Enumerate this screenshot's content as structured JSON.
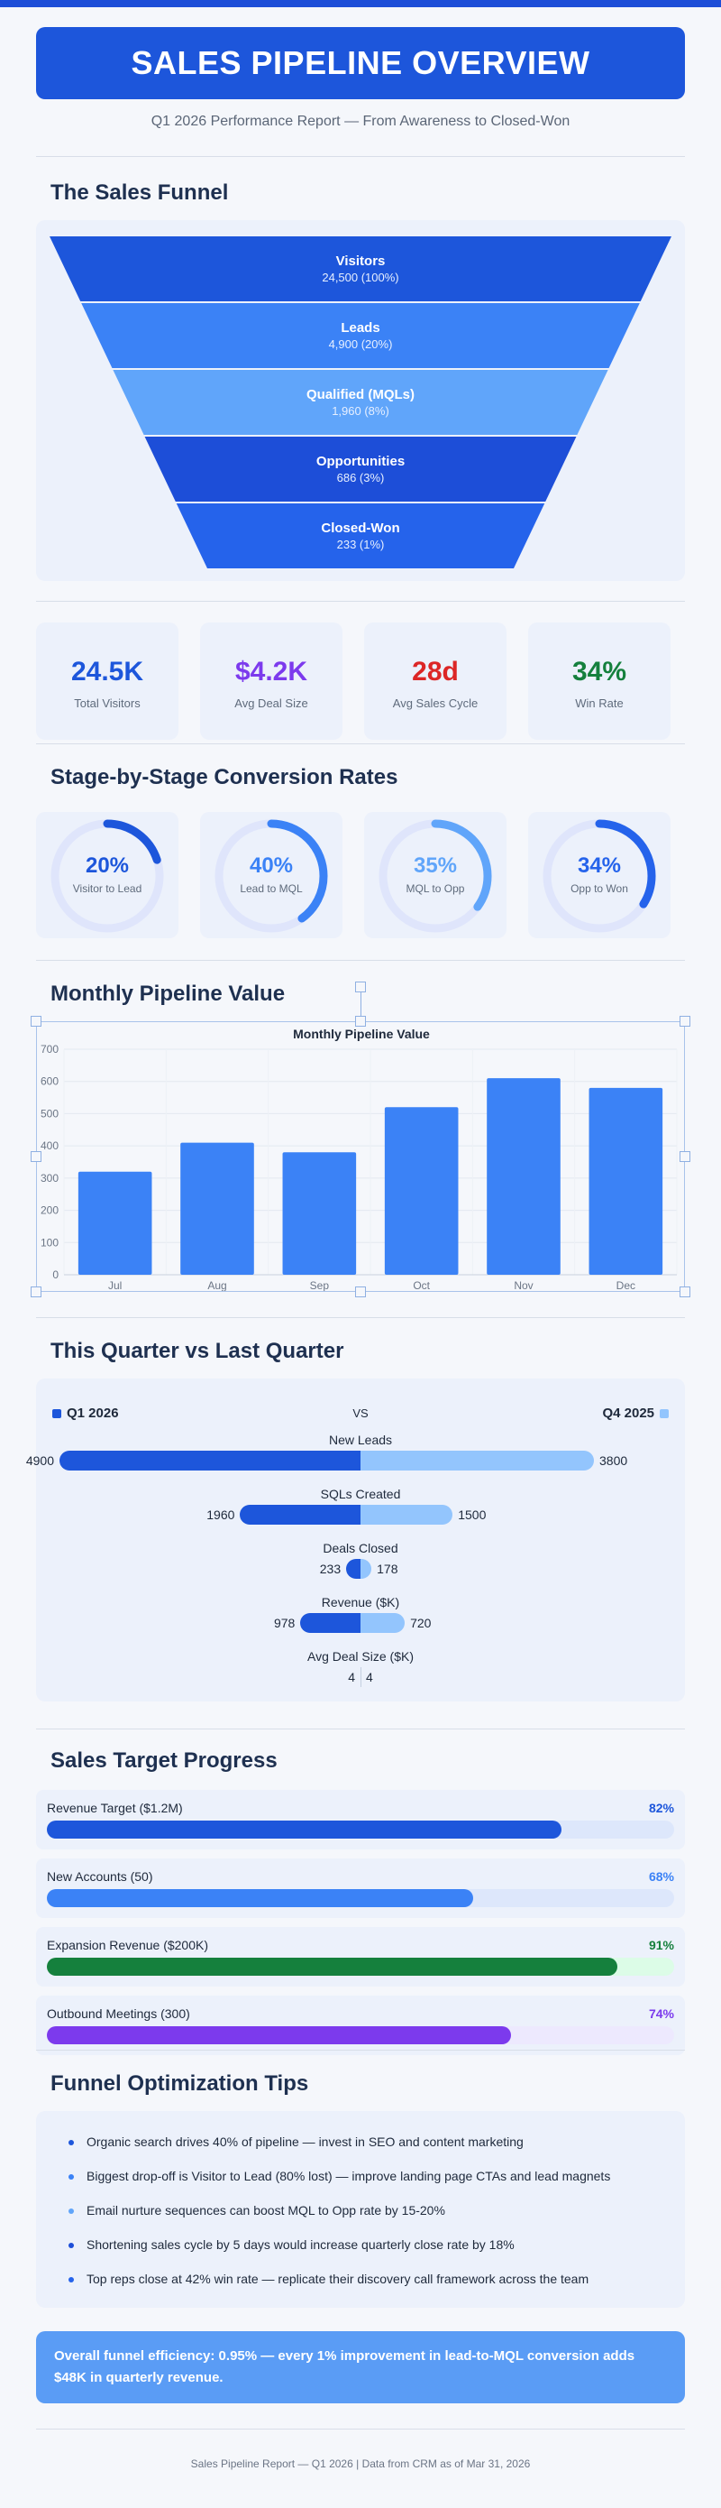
{
  "header": {
    "title": "SALES PIPELINE OVERVIEW",
    "subtitle": "Q1 2026 Performance Report — From Awareness to Closed-Won"
  },
  "funnel": {
    "title": "The Sales Funnel",
    "stages": [
      {
        "name": "Visitors",
        "detail": "24,500 (100%)",
        "value": 24500,
        "color": "#1d56db"
      },
      {
        "name": "Leads",
        "detail": "4,900 (20%)",
        "value": 4900,
        "color": "#3b82f6"
      },
      {
        "name": "Qualified (MQLs)",
        "detail": "1,960 (8%)",
        "value": 1960,
        "color": "#60a5fa"
      },
      {
        "name": "Opportunities",
        "detail": "686 (3%)",
        "value": 686,
        "color": "#1d4ed8"
      },
      {
        "name": "Closed-Won",
        "detail": "233 (1%)",
        "value": 233,
        "color": "#2563eb"
      }
    ]
  },
  "kpis": [
    {
      "value": "24.5K",
      "label": "Total Visitors",
      "color": "#1d56db"
    },
    {
      "value": "$4.2K",
      "label": "Avg Deal Size",
      "color": "#7c3aed"
    },
    {
      "value": "28d",
      "label": "Avg Sales Cycle",
      "color": "#dc2626"
    },
    {
      "value": "34%",
      "label": "Win Rate",
      "color": "#15803d"
    }
  ],
  "conversion": {
    "title": "Stage-by-Stage Conversion Rates",
    "items": [
      {
        "value": "20%",
        "pct": 20,
        "label": "Visitor to Lead",
        "color": "#1d56db"
      },
      {
        "value": "40%",
        "pct": 40,
        "label": "Lead to MQL",
        "color": "#3b82f6"
      },
      {
        "value": "35%",
        "pct": 35,
        "label": "MQL to Opp",
        "color": "#60a5fa"
      },
      {
        "value": "34%",
        "pct": 34,
        "label": "Opp to Won",
        "color": "#2563eb"
      }
    ]
  },
  "monthly": {
    "section_title": "Monthly Pipeline Value"
  },
  "chart_data": {
    "type": "bar",
    "title": "Monthly Pipeline Value",
    "categories": [
      "Jul",
      "Aug",
      "Sep",
      "Oct",
      "Nov",
      "Dec"
    ],
    "values": [
      320,
      410,
      380,
      520,
      610,
      580
    ],
    "ylim": [
      0,
      700
    ],
    "yticks": [
      0,
      100,
      200,
      300,
      400,
      500,
      600,
      700
    ],
    "color": "#3b82f6",
    "grid": true
  },
  "comparison": {
    "title": "This Quarter vs Last Quarter",
    "left_label": "Q1 2026",
    "right_label": "Q4 2025",
    "vs": "VS",
    "left_color": "#1d56db",
    "right_color": "#93c5fd",
    "scale_max": 4900,
    "rows": [
      {
        "label": "New Leads",
        "left": 4900,
        "right": 3800
      },
      {
        "label": "SQLs Created",
        "left": 1960,
        "right": 1500
      },
      {
        "label": "Deals Closed",
        "left": 233,
        "right": 178
      },
      {
        "label": "Revenue ($K)",
        "left": 978,
        "right": 720
      },
      {
        "label": "Avg Deal Size ($K)",
        "left": 4,
        "right": 4
      }
    ]
  },
  "targets": {
    "title": "Sales Target Progress",
    "items": [
      {
        "name": "Revenue Target ($1.2M)",
        "pct": 82,
        "pct_label": "82%",
        "color": "#1d56db",
        "track": "#dde7fb",
        "bg": "#ecf1fb"
      },
      {
        "name": "New Accounts (50)",
        "pct": 68,
        "pct_label": "68%",
        "color": "#3b82f6",
        "track": "#dde7fb",
        "bg": "#ecf1fb"
      },
      {
        "name": "Expansion Revenue ($200K)",
        "pct": 91,
        "pct_label": "91%",
        "color": "#15803d",
        "track": "#dcfce7",
        "bg": "#ecf1fb"
      },
      {
        "name": "Outbound Meetings (300)",
        "pct": 74,
        "pct_label": "74%",
        "color": "#7c3aed",
        "track": "#ede9fe",
        "bg": "#ecf1fb"
      }
    ]
  },
  "tips": {
    "title": "Funnel Optimization Tips",
    "items": [
      {
        "text": "Organic search drives 40% of pipeline — invest in SEO and content marketing",
        "color": "#1d56db"
      },
      {
        "text": "Biggest drop-off is Visitor to Lead (80% lost) — improve landing page CTAs and lead magnets",
        "color": "#3b82f6"
      },
      {
        "text": "Email nurture sequences can boost MQL to Opp rate by 15-20%",
        "color": "#60a5fa"
      },
      {
        "text": "Shortening sales cycle by 5 days would increase quarterly close rate by 18%",
        "color": "#1d4ed8"
      },
      {
        "text": "Top reps close at 42% win rate — replicate their discovery call framework across the team",
        "color": "#2563eb"
      }
    ]
  },
  "callout": "Overall funnel efficiency: 0.95% — every 1% improvement in lead-to-MQL conversion adds $48K in quarterly revenue.",
  "footer": "Sales Pipeline Report — Q1 2026 | Data from CRM as of Mar 31, 2026"
}
